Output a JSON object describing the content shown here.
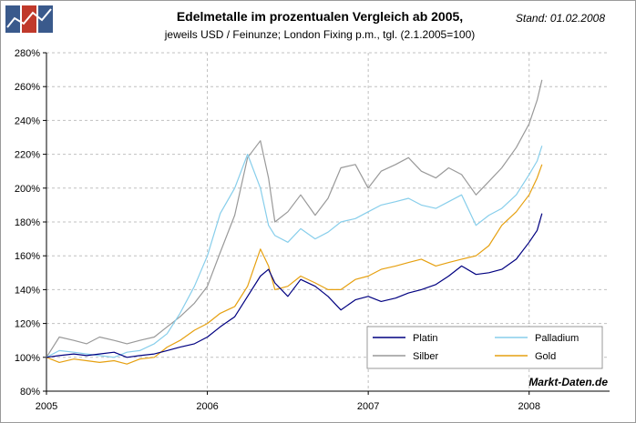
{
  "header": {
    "title": "Edelmetalle im prozentualen Vergleich ab 2005,",
    "subtitle": "jeweils USD / Feinunze; London Fixing p.m., tgl. (2.1.2005=100)",
    "date": "Stand: 01.02.2008"
  },
  "chart_data": {
    "type": "line",
    "title": "Edelmetalle im prozentualen Vergleich ab 2005,",
    "subtitle": "jeweils USD / Feinunze; London Fixing p.m., tgl. (2.1.2005=100)",
    "xlabel": "",
    "ylabel": "",
    "xlim": [
      2005.0,
      2008.5
    ],
    "ylim": [
      80,
      280
    ],
    "x_ticks": [
      {
        "v": 2005,
        "label": "2005"
      },
      {
        "v": 2006,
        "label": "2006"
      },
      {
        "v": 2007,
        "label": "2007"
      },
      {
        "v": 2008,
        "label": "2008"
      }
    ],
    "y_ticks": [
      {
        "v": 80,
        "label": "80%"
      },
      {
        "v": 100,
        "label": "100%"
      },
      {
        "v": 120,
        "label": "120%"
      },
      {
        "v": 140,
        "label": "140%"
      },
      {
        "v": 160,
        "label": "160%"
      },
      {
        "v": 180,
        "label": "180%"
      },
      {
        "v": 200,
        "label": "200%"
      },
      {
        "v": 220,
        "label": "220%"
      },
      {
        "v": 240,
        "label": "240%"
      },
      {
        "v": 260,
        "label": "260%"
      },
      {
        "v": 280,
        "label": "280%"
      }
    ],
    "grid": true,
    "legend_position": "bottom-right",
    "source": "Markt-Daten.de",
    "series": [
      {
        "name": "Platin",
        "color": "#000080",
        "x": [
          2005.0,
          2005.08,
          2005.17,
          2005.25,
          2005.33,
          2005.42,
          2005.5,
          2005.58,
          2005.67,
          2005.75,
          2005.83,
          2005.92,
          2006.0,
          2006.08,
          2006.17,
          2006.25,
          2006.33,
          2006.38,
          2006.42,
          2006.5,
          2006.58,
          2006.67,
          2006.75,
          2006.83,
          2006.92,
          2007.0,
          2007.08,
          2007.17,
          2007.25,
          2007.33,
          2007.42,
          2007.5,
          2007.58,
          2007.67,
          2007.75,
          2007.83,
          2007.92,
          2008.0,
          2008.05,
          2008.08
        ],
        "y": [
          100,
          101,
          102,
          101,
          102,
          103,
          100,
          101,
          102,
          104,
          106,
          108,
          112,
          118,
          124,
          136,
          148,
          152,
          144,
          136,
          146,
          142,
          136,
          128,
          134,
          136,
          133,
          135,
          138,
          140,
          143,
          148,
          154,
          149,
          150,
          152,
          158,
          168,
          175,
          185
        ]
      },
      {
        "name": "Palladium",
        "color": "#87ceeb",
        "x": [
          2005.0,
          2005.08,
          2005.17,
          2005.25,
          2005.33,
          2005.42,
          2005.5,
          2005.58,
          2005.67,
          2005.75,
          2005.83,
          2005.92,
          2006.0,
          2006.08,
          2006.17,
          2006.25,
          2006.33,
          2006.38,
          2006.42,
          2006.5,
          2006.58,
          2006.67,
          2006.75,
          2006.83,
          2006.92,
          2007.0,
          2007.08,
          2007.17,
          2007.25,
          2007.33,
          2007.42,
          2007.5,
          2007.58,
          2007.67,
          2007.75,
          2007.83,
          2007.92,
          2008.0,
          2008.05,
          2008.08
        ],
        "y": [
          100,
          104,
          103,
          102,
          101,
          100,
          103,
          104,
          108,
          114,
          126,
          142,
          160,
          185,
          200,
          220,
          200,
          178,
          172,
          168,
          176,
          170,
          174,
          180,
          182,
          186,
          190,
          192,
          194,
          190,
          188,
          192,
          196,
          178,
          184,
          188,
          196,
          208,
          216,
          225
        ]
      },
      {
        "name": "Silber",
        "color": "#999999",
        "x": [
          2005.0,
          2005.08,
          2005.17,
          2005.25,
          2005.33,
          2005.42,
          2005.5,
          2005.58,
          2005.67,
          2005.75,
          2005.83,
          2005.92,
          2006.0,
          2006.08,
          2006.17,
          2006.25,
          2006.33,
          2006.38,
          2006.42,
          2006.5,
          2006.58,
          2006.67,
          2006.75,
          2006.83,
          2006.92,
          2007.0,
          2007.08,
          2007.17,
          2007.25,
          2007.33,
          2007.42,
          2007.5,
          2007.58,
          2007.67,
          2007.75,
          2007.83,
          2007.92,
          2008.0,
          2008.05,
          2008.08
        ],
        "y": [
          100,
          112,
          110,
          108,
          112,
          110,
          108,
          110,
          112,
          118,
          124,
          132,
          142,
          162,
          184,
          218,
          228,
          206,
          180,
          186,
          196,
          184,
          194,
          212,
          214,
          200,
          210,
          214,
          218,
          210,
          206,
          212,
          208,
          196,
          204,
          212,
          224,
          238,
          252,
          264
        ]
      },
      {
        "name": "Gold",
        "color": "#e6a010",
        "x": [
          2005.0,
          2005.08,
          2005.17,
          2005.25,
          2005.33,
          2005.42,
          2005.5,
          2005.58,
          2005.67,
          2005.75,
          2005.83,
          2005.92,
          2006.0,
          2006.08,
          2006.17,
          2006.25,
          2006.33,
          2006.38,
          2006.42,
          2006.5,
          2006.58,
          2006.67,
          2006.75,
          2006.83,
          2006.92,
          2007.0,
          2007.08,
          2007.17,
          2007.25,
          2007.33,
          2007.42,
          2007.5,
          2007.58,
          2007.67,
          2007.75,
          2007.83,
          2007.92,
          2008.0,
          2008.05,
          2008.08
        ],
        "y": [
          100,
          97,
          99,
          98,
          97,
          98,
          96,
          99,
          100,
          106,
          110,
          116,
          120,
          126,
          130,
          142,
          164,
          154,
          140,
          142,
          148,
          144,
          140,
          140,
          146,
          148,
          152,
          154,
          156,
          158,
          154,
          156,
          158,
          160,
          166,
          178,
          186,
          196,
          206,
          214
        ]
      }
    ]
  }
}
